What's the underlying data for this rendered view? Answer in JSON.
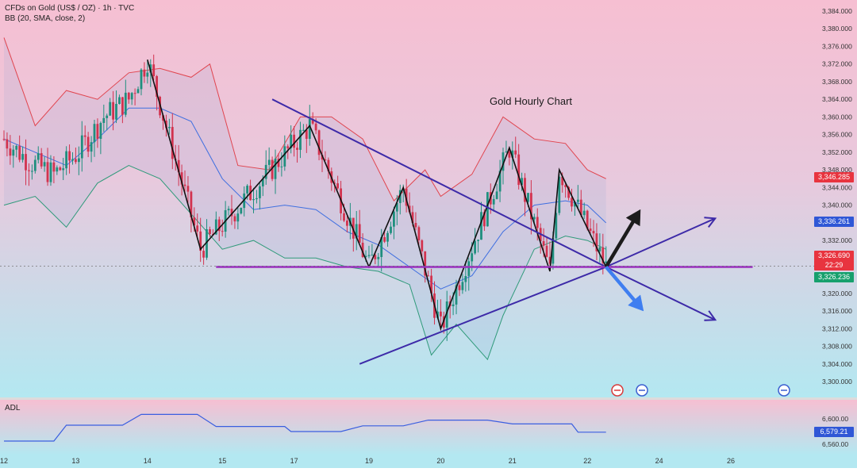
{
  "header": {
    "symbol_line": "CFDs on Gold (US$ / OZ) · 1h · TVC",
    "indicator_line": "BB (20, SMA, close, 2)"
  },
  "annotation_title": "Gold Hourly Chart",
  "colors": {
    "bg_top": "#f6bfd2",
    "bg_bottom": "#b6e8ef",
    "candle_up": "#1f8f7e",
    "candle_down": "#d2334f",
    "bb_upper": "#e0454f",
    "bb_basis": "#3f6fe0",
    "bb_lower": "#2f9a7a",
    "trendline": "#3d2aa8",
    "support": "#9a2fbf",
    "adl_line": "#3a5ee0",
    "tag_red": "#e8343f",
    "tag_blue": "#2f57d6",
    "tag_green": "#17a06d",
    "arrow_up": "#1c1c1c",
    "arrow_down": "#3f7ef0"
  },
  "price_axis": {
    "min": 3300,
    "max": 3384,
    "ticks": [
      "3,384.000",
      "3,380.000",
      "3,376.000",
      "3,372.000",
      "3,368.000",
      "3,364.000",
      "3,360.000",
      "3,356.000",
      "3,352.000",
      "3,348.000",
      "3,344.000",
      "3,340.000",
      "3,336.000",
      "3,332.000",
      "3,328.000",
      "3,324.000",
      "3,320.000",
      "3,316.000",
      "3,312.000",
      "3,308.000",
      "3,304.000",
      "3,300.000"
    ],
    "tick_values": [
      3384,
      3380,
      3376,
      3372,
      3368,
      3364,
      3360,
      3356,
      3352,
      3348,
      3344,
      3340,
      3336,
      3332,
      3328,
      3324,
      3320,
      3316,
      3312,
      3308,
      3304,
      3300
    ]
  },
  "price_tags": [
    {
      "label": "3,346.285",
      "value": 3346.285,
      "color": "tag_red"
    },
    {
      "label": "3,336.261",
      "value": 3336.261,
      "color": "tag_blue"
    },
    {
      "label": "3,326.690",
      "value": 3328.6,
      "color": "tag_red"
    },
    {
      "label": "22:29",
      "value": 3326.4,
      "color": "tag_red"
    },
    {
      "label": "3,326.236",
      "value": 3323.6,
      "color": "tag_green"
    }
  ],
  "time_axis": {
    "labels": [
      "12",
      "13",
      "14",
      "15",
      "17",
      "19",
      "20",
      "21",
      "22",
      "24",
      "26"
    ],
    "bar_index": [
      0,
      23,
      46,
      70,
      93,
      117,
      140,
      163,
      187,
      210,
      233
    ]
  },
  "adl_panel": {
    "label": "ADL",
    "min": 6550,
    "max": 6620,
    "ticks": [
      "6,600.00",
      "6,560.00"
    ],
    "tick_values": [
      6600,
      6560
    ],
    "last_label": "6,579.21",
    "last_value": 6579.21
  },
  "chart_data": {
    "type": "candlestick",
    "title": "Gold Hourly Chart",
    "symbol": "CFDs on Gold (US$ / OZ) · 1h · TVC",
    "x_range_bars": [
      0,
      262
    ],
    "ylim": [
      3300,
      3384
    ],
    "pivot_path": [
      [
        46,
        3373
      ],
      [
        63,
        3330
      ],
      [
        98,
        3358
      ],
      [
        117,
        3326
      ],
      [
        128,
        3344
      ],
      [
        140,
        3312
      ],
      [
        162,
        3353
      ],
      [
        175,
        3325
      ],
      [
        178,
        3348
      ],
      [
        193,
        3326
      ]
    ],
    "lines": {
      "upper_trend": [
        [
          86,
          3364
        ],
        [
          193,
          3326
        ],
        [
          228,
          3314
        ]
      ],
      "lower_trend": [
        [
          114,
          3304
        ],
        [
          193,
          3326
        ],
        [
          228,
          3337
        ]
      ],
      "support": [
        [
          68,
          3326
        ],
        [
          240,
          3326
        ]
      ]
    },
    "arrows": {
      "bullish_target": [
        [
          193,
          3326
        ],
        [
          204,
          3339
        ]
      ],
      "bearish_target": [
        [
          193,
          3326
        ],
        [
          205,
          3316
        ]
      ]
    },
    "bollinger": {
      "upper": [
        [
          0,
          3378
        ],
        [
          10,
          3358
        ],
        [
          20,
          3366
        ],
        [
          30,
          3364
        ],
        [
          40,
          3370
        ],
        [
          50,
          3371
        ],
        [
          60,
          3369
        ],
        [
          66,
          3372
        ],
        [
          75,
          3349
        ],
        [
          85,
          3348
        ],
        [
          95,
          3360
        ],
        [
          105,
          3360
        ],
        [
          115,
          3355
        ],
        [
          125,
          3341
        ],
        [
          135,
          3348
        ],
        [
          140,
          3342
        ],
        [
          150,
          3347
        ],
        [
          160,
          3360
        ],
        [
          170,
          3355
        ],
        [
          180,
          3354
        ],
        [
          187,
          3348
        ],
        [
          193,
          3346
        ]
      ],
      "basis": [
        [
          0,
          3355
        ],
        [
          10,
          3352
        ],
        [
          20,
          3349
        ],
        [
          30,
          3355
        ],
        [
          40,
          3362
        ],
        [
          50,
          3362
        ],
        [
          60,
          3359
        ],
        [
          70,
          3346
        ],
        [
          80,
          3339
        ],
        [
          90,
          3340
        ],
        [
          100,
          3339
        ],
        [
          110,
          3334
        ],
        [
          120,
          3331
        ],
        [
          130,
          3326
        ],
        [
          140,
          3321
        ],
        [
          150,
          3324
        ],
        [
          160,
          3334
        ],
        [
          170,
          3340
        ],
        [
          180,
          3341
        ],
        [
          187,
          3340
        ],
        [
          193,
          3336
        ]
      ],
      "lower": [
        [
          0,
          3340
        ],
        [
          10,
          3342
        ],
        [
          20,
          3335
        ],
        [
          30,
          3345
        ],
        [
          40,
          3349
        ],
        [
          50,
          3346
        ],
        [
          60,
          3338
        ],
        [
          70,
          3330
        ],
        [
          80,
          3332
        ],
        [
          90,
          3328
        ],
        [
          100,
          3328
        ],
        [
          110,
          3326
        ],
        [
          120,
          3325
        ],
        [
          130,
          3322
        ],
        [
          137,
          3306
        ],
        [
          145,
          3313
        ],
        [
          155,
          3305
        ],
        [
          160,
          3315
        ],
        [
          170,
          3330
        ],
        [
          180,
          3333
        ],
        [
          187,
          3332
        ],
        [
          193,
          3330
        ]
      ]
    },
    "adl": {
      "series": [
        [
          0,
          6565
        ],
        [
          16,
          6565
        ],
        [
          20,
          6590
        ],
        [
          38,
          6590
        ],
        [
          44,
          6607
        ],
        [
          62,
          6607
        ],
        [
          68,
          6588
        ],
        [
          90,
          6588
        ],
        [
          92,
          6580
        ],
        [
          108,
          6580
        ],
        [
          115,
          6589
        ],
        [
          128,
          6589
        ],
        [
          136,
          6598
        ],
        [
          155,
          6598
        ],
        [
          163,
          6592
        ],
        [
          182,
          6592
        ],
        [
          184,
          6579
        ],
        [
          193,
          6579
        ]
      ]
    }
  }
}
